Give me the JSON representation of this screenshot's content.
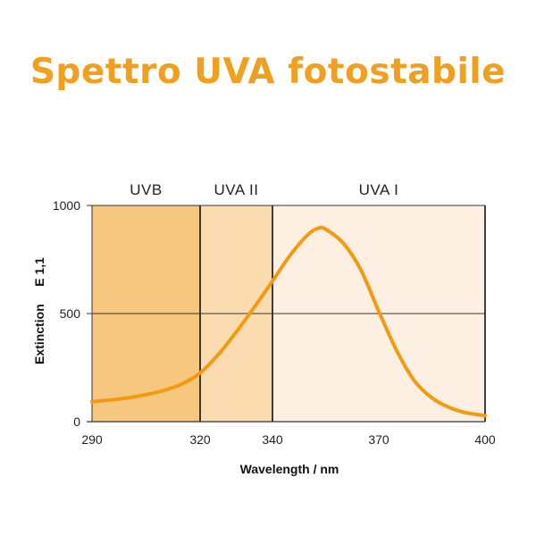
{
  "title": "Spettro UVA fotostabile",
  "colors": {
    "title": "#f0a020",
    "uvb": "#f7c77f",
    "uva2": "#fadcb0",
    "uva1": "#fdf0e2",
    "curve": "#f29a10"
  },
  "chart_data": {
    "type": "line",
    "xlabel": "Wavelength / nm",
    "ylabel": "Extinction     E 1,1",
    "x_ticks": [
      "290",
      "320",
      "340",
      "370",
      "400"
    ],
    "x_tick_values": [
      290,
      320,
      340,
      370,
      400
    ],
    "y_ticks": [
      "0",
      "500",
      "1000"
    ],
    "y_tick_values": [
      0,
      500,
      1000
    ],
    "xlim": [
      290,
      400
    ],
    "ylim": [
      0,
      1000
    ],
    "grid_y": [
      500
    ],
    "regions": [
      {
        "label": "UVB",
        "from": 290,
        "to": 320
      },
      {
        "label": "UVA II",
        "from": 320,
        "to": 340
      },
      {
        "label": "UVA I",
        "from": 340,
        "to": 400
      }
    ],
    "series": [
      {
        "x": [
          290,
          295,
          300,
          305,
          310,
          315,
          320,
          325,
          330,
          335,
          340,
          345,
          350,
          353,
          355,
          360,
          365,
          370,
          375,
          380,
          385,
          390,
          395,
          400
        ],
        "y": [
          92,
          100,
          110,
          125,
          145,
          175,
          225,
          310,
          415,
          530,
          650,
          770,
          865,
          895,
          890,
          825,
          700,
          510,
          330,
          190,
          110,
          65,
          40,
          28
        ]
      }
    ]
  }
}
